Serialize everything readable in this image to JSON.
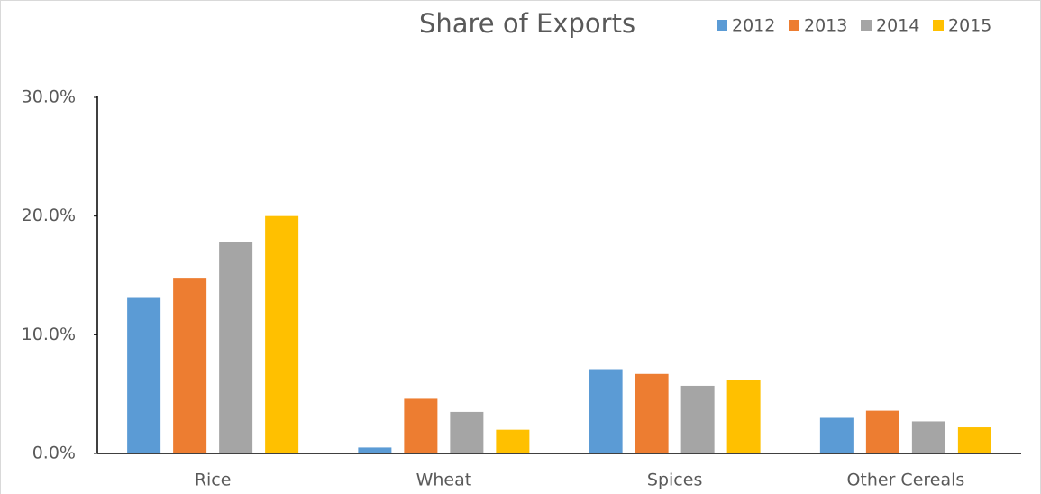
{
  "chart_data": {
    "type": "bar",
    "title": "Share of Exports",
    "categories": [
      "Rice",
      "Wheat",
      "Spices",
      "Other Cereals"
    ],
    "series": [
      {
        "name": "2012",
        "color": "#5b9bd5",
        "values": [
          13.1,
          0.5,
          7.1,
          3.0
        ]
      },
      {
        "name": "2013",
        "color": "#ed7d31",
        "values": [
          14.8,
          4.6,
          6.7,
          3.6
        ]
      },
      {
        "name": "2014",
        "color": "#a5a5a5",
        "values": [
          17.8,
          3.5,
          5.7,
          2.7
        ]
      },
      {
        "name": "2015",
        "color": "#ffc000",
        "values": [
          20.0,
          2.0,
          6.2,
          2.2
        ]
      }
    ],
    "ylim": [
      0,
      30
    ],
    "yticks": [
      {
        "value": 0,
        "label": "0.0%"
      },
      {
        "value": 10,
        "label": "10.0%"
      },
      {
        "value": 20,
        "label": "20.0%"
      },
      {
        "value": 30,
        "label": "30.0%"
      }
    ],
    "grid": false,
    "legend": "top-right"
  }
}
